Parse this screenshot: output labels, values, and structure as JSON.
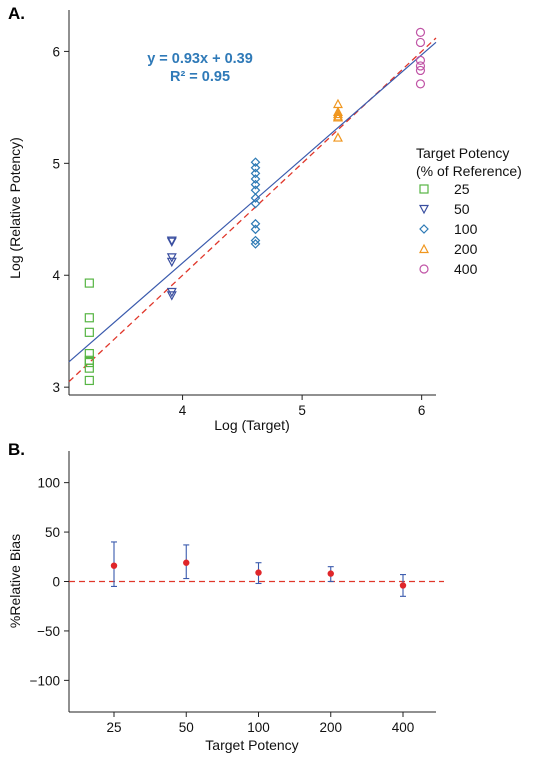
{
  "chart_data": [
    {
      "panel_label": "A.",
      "type": "scatter",
      "xlabel": "Log (Target)",
      "ylabel": "Log (Relative Potency)",
      "xlim": [
        3.05,
        6.12
      ],
      "ylim": [
        2.93,
        6.37
      ],
      "x_ticks": [
        {
          "v": 4,
          "label": "4"
        },
        {
          "v": 5,
          "label": "5"
        },
        {
          "v": 6,
          "label": "6"
        }
      ],
      "y_ticks": [
        {
          "v": 3,
          "label": "3"
        },
        {
          "v": 4,
          "label": "4"
        },
        {
          "v": 5,
          "label": "5"
        },
        {
          "v": 6,
          "label": "6"
        }
      ],
      "equation": "y = 0.93x + 0.39",
      "r2": "R² = 0.95",
      "fit_line": {
        "slope": 0.93,
        "intercept": 0.39,
        "color": "#3a5aad"
      },
      "identity_line": {
        "slope": 1,
        "intercept": 0,
        "color": "#e0362a",
        "style": "dashed"
      },
      "legend_title": [
        "Target Potency",
        "(% of Reference)"
      ],
      "legend_placement": "right",
      "series": [
        {
          "name": "25",
          "marker": "square",
          "color": "#56b543",
          "x": 3.22,
          "y": [
            3.93,
            3.62,
            3.49,
            3.3,
            3.24,
            3.22,
            3.17,
            3.06
          ]
        },
        {
          "name": "50",
          "marker": "triangle-down",
          "color": "#3a4fa0",
          "x": 3.91,
          "y": [
            4.31,
            4.3,
            4.16,
            4.12,
            3.85,
            3.82
          ]
        },
        {
          "name": "100",
          "marker": "diamond",
          "color": "#2d7ab5",
          "x": 4.61,
          "y": [
            5.01,
            4.96,
            4.91,
            4.86,
            4.81,
            4.76,
            4.69,
            4.64,
            4.46,
            4.41,
            4.31,
            4.28
          ]
        },
        {
          "name": "200",
          "marker": "triangle-up",
          "color": "#f0961e",
          "x": 5.3,
          "y": [
            5.53,
            5.46,
            5.44,
            5.42,
            5.41,
            5.23
          ]
        },
        {
          "name": "400",
          "marker": "circle",
          "color": "#c054a6",
          "x": 5.99,
          "y": [
            6.17,
            6.08,
            5.92,
            5.87,
            5.83,
            5.71
          ]
        }
      ]
    },
    {
      "panel_label": "B.",
      "type": "errorbar",
      "xlabel": "Target Potency",
      "ylabel": "%Relative Bias",
      "ylim": [
        -132,
        132
      ],
      "categories": [
        "25",
        "50",
        "100",
        "200",
        "400"
      ],
      "y_ticks": [
        {
          "v": 100,
          "label": "100"
        },
        {
          "v": 50,
          "label": "50"
        },
        {
          "v": 0,
          "label": "0"
        },
        {
          "v": -50,
          "label": "−50"
        },
        {
          "v": -100,
          "label": "−100"
        }
      ],
      "reference_line": {
        "y": 0,
        "color": "#e0362a",
        "style": "dashed"
      },
      "point_color": "#e0262a",
      "errorbar_color": "#3a5aad",
      "points": [
        {
          "category": "25",
          "value": 16,
          "low": -5,
          "high": 40
        },
        {
          "category": "50",
          "value": 19,
          "low": 3,
          "high": 37
        },
        {
          "category": "100",
          "value": 9,
          "low": -2,
          "high": 19
        },
        {
          "category": "200",
          "value": 8,
          "low": 0,
          "high": 15
        },
        {
          "category": "400",
          "value": -4,
          "low": -15,
          "high": 7
        }
      ]
    }
  ]
}
